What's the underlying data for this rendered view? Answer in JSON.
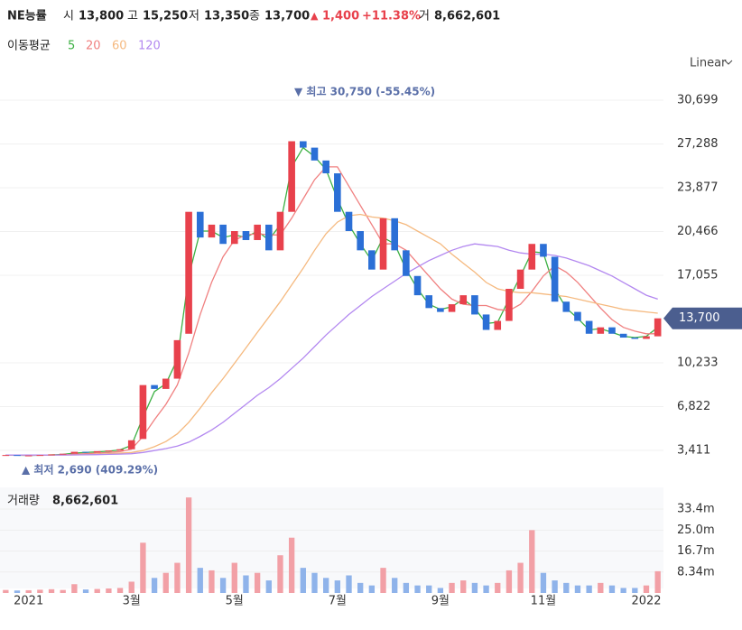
{
  "header": {
    "name": "NE능률",
    "open_label": "시",
    "open": "13,800",
    "high_label": "고",
    "high": "15,250",
    "low_label": "저",
    "low": "13,350",
    "close_label": "종",
    "close": "13,700",
    "change_arrow": "▲",
    "change": "1,400",
    "change_pct": "+11.38%",
    "volume_label": "거",
    "volume": "8,662,601"
  },
  "legend": {
    "title": "이동평균",
    "items": [
      "5",
      "20",
      "60",
      "120"
    ]
  },
  "scale_button": "Linear",
  "chart_data": [
    {
      "type": "candlestick",
      "categories": [
        null,
        null,
        "2021",
        null,
        null,
        null,
        null,
        null,
        null,
        null,
        null,
        "3월",
        null,
        null,
        null,
        null,
        null,
        null,
        null,
        null,
        "5월",
        null,
        null,
        null,
        null,
        null,
        null,
        null,
        null,
        "7월",
        null,
        null,
        null,
        null,
        null,
        null,
        null,
        null,
        "9월",
        null,
        null,
        null,
        null,
        null,
        null,
        null,
        null,
        "11월",
        null,
        null,
        null,
        null,
        null,
        null,
        null,
        null,
        "2022",
        null
      ],
      "open": [
        3000,
        3050,
        3000,
        3020,
        3050,
        3100,
        3150,
        3300,
        3250,
        3350,
        3400,
        3500,
        4300,
        8500,
        8200,
        9000,
        12500,
        22000,
        20000,
        21000,
        19500,
        20500,
        19800,
        21000,
        19000,
        22000,
        27500,
        27000,
        26000,
        25000,
        22000,
        20500,
        19000,
        17500,
        21500,
        19000,
        17000,
        15500,
        14500,
        14200,
        14800,
        15500,
        14000,
        12800,
        13500,
        16000,
        17500,
        19500,
        18500,
        15000,
        14200,
        13500,
        12500,
        13000,
        12500,
        12200,
        12100,
        12300
      ],
      "close": [
        3050,
        3000,
        3020,
        3050,
        3100,
        3150,
        3300,
        3250,
        3350,
        3400,
        3500,
        4200,
        8500,
        8200,
        9000,
        12000,
        22000,
        20000,
        21000,
        19500,
        20500,
        19800,
        21000,
        19000,
        22000,
        27500,
        27000,
        26000,
        25000,
        22000,
        20500,
        19000,
        17500,
        21500,
        19000,
        17000,
        15500,
        14500,
        14200,
        14800,
        15500,
        14000,
        12800,
        13500,
        16000,
        17500,
        19500,
        18500,
        15000,
        14200,
        13500,
        12500,
        13000,
        12500,
        12200,
        12100,
        12300,
        13700
      ],
      "up_color": "#e8414c",
      "down_color": "#2b6fd6",
      "series": [
        {
          "name": "5",
          "color": "#3cb043",
          "values": [
            3050,
            3030,
            3020,
            3030,
            3060,
            3100,
            3200,
            3250,
            3300,
            3350,
            3450,
            3800,
            6000,
            8000,
            8600,
            10500,
            17000,
            20500,
            20500,
            20000,
            20200,
            20000,
            20500,
            19800,
            21000,
            25500,
            27000,
            26300,
            25300,
            23000,
            21000,
            19500,
            18200,
            20000,
            19500,
            17500,
            16000,
            14800,
            14400,
            14600,
            15200,
            14500,
            13300,
            13400,
            15200,
            17000,
            18900,
            18800,
            16000,
            14500,
            13700,
            12800,
            12900,
            12600,
            12300,
            12200,
            12300,
            13000
          ]
        },
        {
          "name": "20",
          "color": "#f08080",
          "values": [
            3050,
            3050,
            3040,
            3040,
            3050,
            3070,
            3100,
            3150,
            3200,
            3250,
            3320,
            3500,
            4500,
            5800,
            7000,
            8500,
            11000,
            14000,
            16500,
            18500,
            19800,
            20200,
            20300,
            20200,
            20200,
            21500,
            23000,
            24500,
            25500,
            25500,
            24000,
            22500,
            21000,
            19500,
            19500,
            19000,
            18000,
            17000,
            16000,
            15200,
            14800,
            14700,
            14700,
            14400,
            14300,
            14800,
            15800,
            17000,
            17800,
            17300,
            16500,
            15500,
            14500,
            13600,
            13000,
            12700,
            12500,
            12500
          ]
        },
        {
          "name": "60",
          "color": "#f5b97f",
          "values": [
            3050,
            3050,
            3050,
            3050,
            3050,
            3050,
            3060,
            3080,
            3100,
            3150,
            3200,
            3250,
            3400,
            3700,
            4100,
            4700,
            5600,
            6700,
            7900,
            9000,
            10200,
            11400,
            12600,
            13800,
            15000,
            16300,
            17600,
            19000,
            20300,
            21200,
            21700,
            21800,
            21600,
            21500,
            21300,
            21000,
            20500,
            20000,
            19500,
            18700,
            18000,
            17300,
            16500,
            16000,
            15800,
            15700,
            15700,
            15600,
            15500,
            15400,
            15200,
            15000,
            14800,
            14600,
            14400,
            14300,
            14200,
            14100
          ]
        },
        {
          "name": "120",
          "color": "#b388f0",
          "values": [
            3050,
            3050,
            3050,
            3050,
            3050,
            3050,
            3060,
            3070,
            3080,
            3100,
            3120,
            3150,
            3250,
            3400,
            3550,
            3750,
            4050,
            4500,
            5000,
            5600,
            6300,
            7000,
            7700,
            8300,
            9000,
            9800,
            10600,
            11500,
            12400,
            13200,
            14000,
            14700,
            15400,
            16000,
            16600,
            17200,
            17700,
            18200,
            18600,
            19000,
            19300,
            19500,
            19400,
            19300,
            19000,
            18800,
            18700,
            18700,
            18600,
            18400,
            18100,
            17800,
            17400,
            17000,
            16500,
            16000,
            15500,
            15200
          ]
        }
      ],
      "ylim": [
        1231,
        32176
      ],
      "yticks": [
        {
          "value": 3411,
          "label": "3,411"
        },
        {
          "value": 6822,
          "label": "6,822"
        },
        {
          "value": 10233,
          "label": "10,233"
        },
        {
          "value": 17055,
          "label": "17,055"
        },
        {
          "value": 20466,
          "label": "20,466"
        },
        {
          "value": 23877,
          "label": "23,877"
        },
        {
          "value": 27288,
          "label": "27,288"
        },
        {
          "value": 30699,
          "label": "30,699"
        }
      ],
      "grid": true,
      "current_price": 13700,
      "current_price_label": "13,700",
      "high_annotation": "▼ 최고 30,750 (-55.45%)",
      "low_annotation": "▲ 최저 2,690 (409.29%)"
    },
    {
      "type": "bar",
      "title": "거래량",
      "last_value": "8,662,601",
      "values": [
        1.2,
        1.0,
        1.1,
        1.3,
        1.5,
        1.2,
        3.5,
        1.4,
        1.6,
        1.8,
        2.0,
        4.5,
        20,
        6,
        8,
        12,
        38,
        10,
        9,
        6,
        12,
        7,
        8,
        5,
        15,
        22,
        10,
        8,
        6,
        5,
        7,
        4,
        3,
        10,
        6,
        4,
        3,
        3,
        2,
        4,
        5,
        4,
        3,
        4,
        9,
        12,
        25,
        8,
        5,
        4,
        3,
        3,
        4,
        3,
        2,
        2,
        3,
        8.662601
      ],
      "ylim": [
        0,
        42
      ],
      "yticks": [
        {
          "value": 8.34,
          "label": "8.34m"
        },
        {
          "value": 16.7,
          "label": "16.7m"
        },
        {
          "value": 25.0,
          "label": "25.0m"
        },
        {
          "value": 33.4,
          "label": "33.4m"
        }
      ]
    }
  ]
}
